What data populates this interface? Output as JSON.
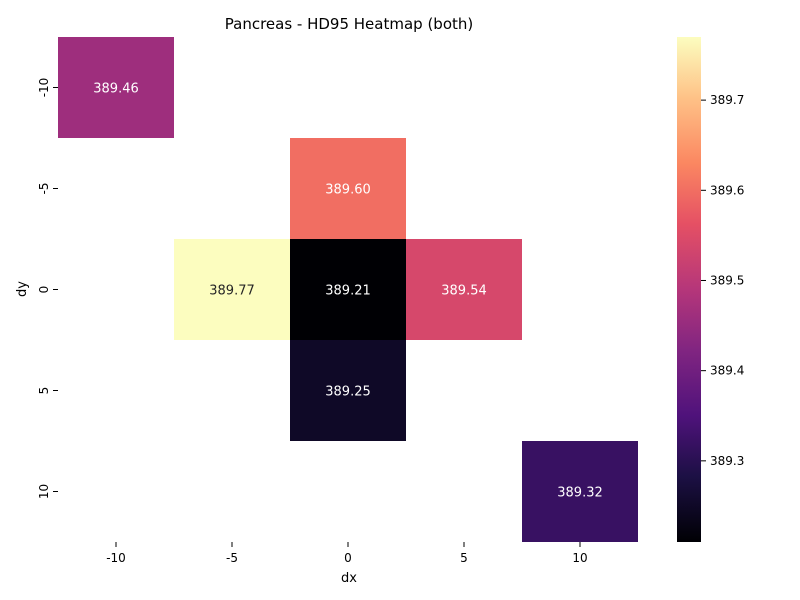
{
  "chart_data": {
    "type": "heatmap",
    "title": "Pancreas - HD95 Heatmap (both)",
    "xlabel": "dx",
    "ylabel": "dy",
    "x_categories": [
      "-10",
      "-5",
      "0",
      "5",
      "10"
    ],
    "y_categories": [
      "-10",
      "-5",
      "0",
      "5",
      "10"
    ],
    "cells": [
      {
        "dx": "-10",
        "dy": "-10",
        "value": 389.46,
        "label": "389.46"
      },
      {
        "dx": "0",
        "dy": "-5",
        "value": 389.6,
        "label": "389.60"
      },
      {
        "dx": "-5",
        "dy": "0",
        "value": 389.77,
        "label": "389.77"
      },
      {
        "dx": "0",
        "dy": "0",
        "value": 389.21,
        "label": "389.21"
      },
      {
        "dx": "5",
        "dy": "0",
        "value": 389.54,
        "label": "389.54"
      },
      {
        "dx": "0",
        "dy": "5",
        "value": 389.25,
        "label": "389.25"
      },
      {
        "dx": "10",
        "dy": "10",
        "value": 389.32,
        "label": "389.32"
      }
    ],
    "colormap": "magma",
    "colorbar": {
      "vmin": 389.21,
      "vmax": 389.77,
      "ticks": [
        389.3,
        389.4,
        389.5,
        389.6,
        389.7
      ],
      "tick_labels": [
        "389.3",
        "389.4",
        "389.5",
        "389.6",
        "389.7"
      ]
    },
    "grid": false,
    "legend": "colorbar-right"
  }
}
